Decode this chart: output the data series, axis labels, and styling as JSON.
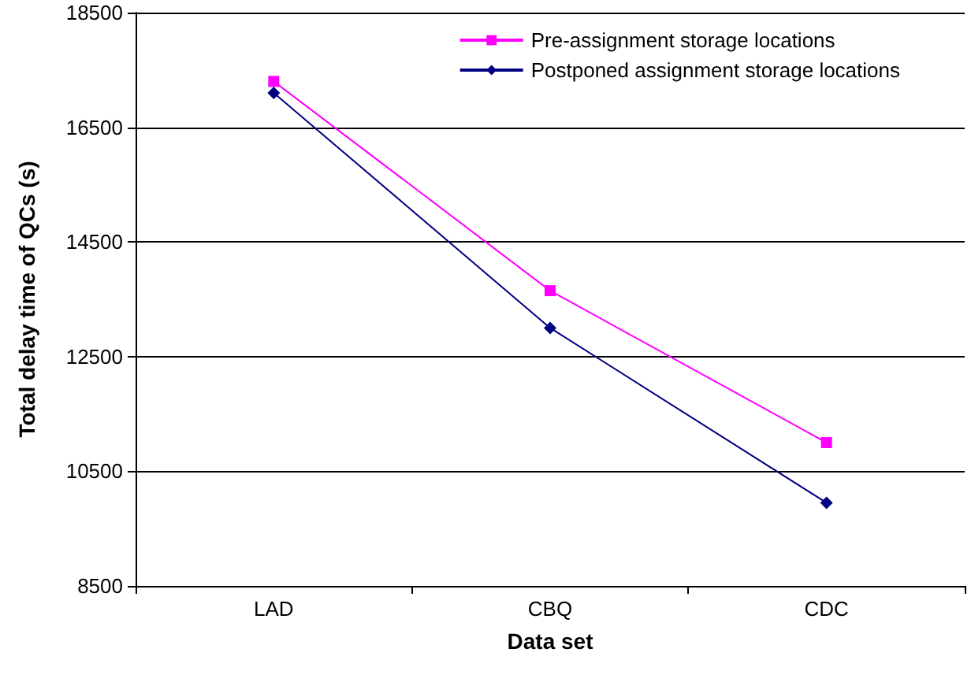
{
  "chart_data": {
    "type": "line",
    "xlabel": "Data set",
    "ylabel": "Total delay time of QCs (s)",
    "categories": [
      "LAD",
      "CBQ",
      "CDC"
    ],
    "series": [
      {
        "name": "Pre-assignment storage locations",
        "color": "#ff00ff",
        "marker": "square",
        "values": [
          17300,
          13650,
          11000
        ]
      },
      {
        "name": "Postponed assignment storage locations",
        "color": "#000080",
        "marker": "diamond",
        "values": [
          17100,
          13000,
          9950
        ]
      }
    ],
    "ylim": [
      8500,
      18500
    ],
    "yticks": [
      8500,
      10500,
      12500,
      14500,
      16500,
      18500
    ],
    "grid": "y",
    "legend": "top right",
    "line_style": "solid"
  }
}
